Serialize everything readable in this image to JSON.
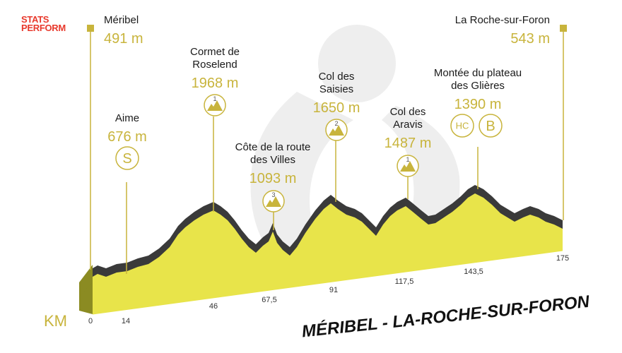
{
  "logo": {
    "line1": "STATS",
    "line2": "PERFORM",
    "color": "#e8392c"
  },
  "title": "MÉRIBEL - LA-ROCHE-SUR-FORON",
  "axis": {
    "unit_label": "KM",
    "ticks": [
      "0",
      "14",
      "46",
      "67,5",
      "91",
      "117,5",
      "143,5",
      "175"
    ]
  },
  "points": [
    {
      "name": "Méribel",
      "alt": "491 m",
      "type": "start"
    },
    {
      "name": "La Roche-sur-Foron",
      "alt": "543 m",
      "type": "finish"
    },
    {
      "name": "Aime",
      "alt": "676 m",
      "badge": "S",
      "type": "sprint"
    },
    {
      "name_lines": [
        "Cormet de",
        "Roselend"
      ],
      "alt": "1968 m",
      "category": "1",
      "type": "climb"
    },
    {
      "name_lines": [
        "Côte de la route",
        "des Villes"
      ],
      "alt": "1093 m",
      "category": "3",
      "type": "climb"
    },
    {
      "name_lines": [
        "Col des",
        "Saisies"
      ],
      "alt": "1650 m",
      "category": "2",
      "type": "climb"
    },
    {
      "name_lines": [
        "Col des",
        "Aravis"
      ],
      "alt": "1487 m",
      "category": "1",
      "type": "climb"
    },
    {
      "name_lines": [
        "Montée du plateau",
        "des Glières"
      ],
      "alt": "1390 m",
      "category": "HC",
      "bonus": "B",
      "type": "climb"
    }
  ],
  "colors": {
    "accent": "#c8b43c",
    "fill": "#e8e44a",
    "side": "#8b8b22",
    "dark": "#3a3a3a",
    "text": "#1a1a1a"
  },
  "icons": {
    "climb": "mountain-icon",
    "sprint": "sprint-icon",
    "bonus": "bonus-icon"
  }
}
